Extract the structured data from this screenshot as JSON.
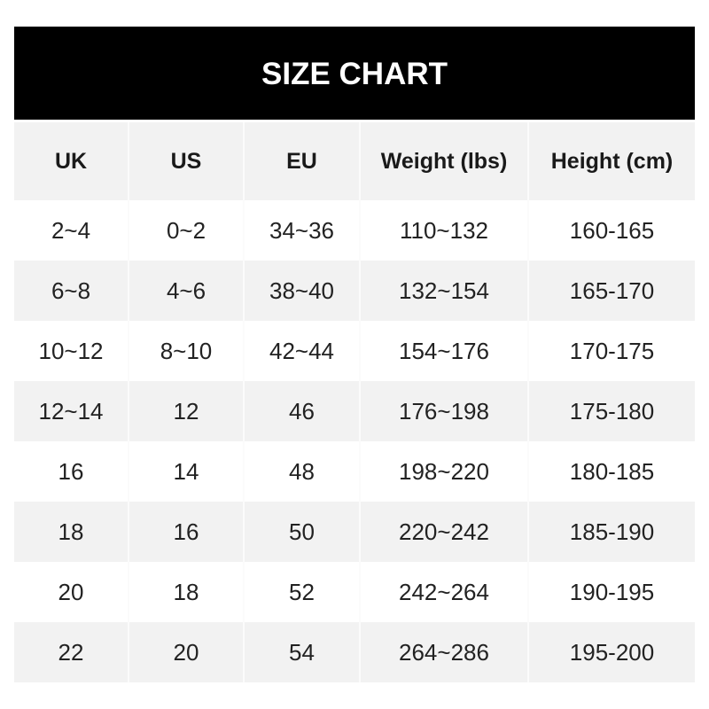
{
  "title": "SIZE CHART",
  "headers": [
    "UK",
    "US",
    "EU",
    "Weight (lbs)",
    "Height (cm)"
  ],
  "rows": [
    [
      "2~4",
      "0~2",
      "34~36",
      "110~132",
      "160-165"
    ],
    [
      "6~8",
      "4~6",
      "38~40",
      "132~154",
      "165-170"
    ],
    [
      "10~12",
      "8~10",
      "42~44",
      "154~176",
      "170-175"
    ],
    [
      "12~14",
      "12",
      "46",
      "176~198",
      "175-180"
    ],
    [
      "16",
      "14",
      "48",
      "198~220",
      "180-185"
    ],
    [
      "18",
      "16",
      "50",
      "220~242",
      "185-190"
    ],
    [
      "20",
      "18",
      "52",
      "242~264",
      "190-195"
    ],
    [
      "22",
      "20",
      "54",
      "264~286",
      "195-200"
    ]
  ]
}
